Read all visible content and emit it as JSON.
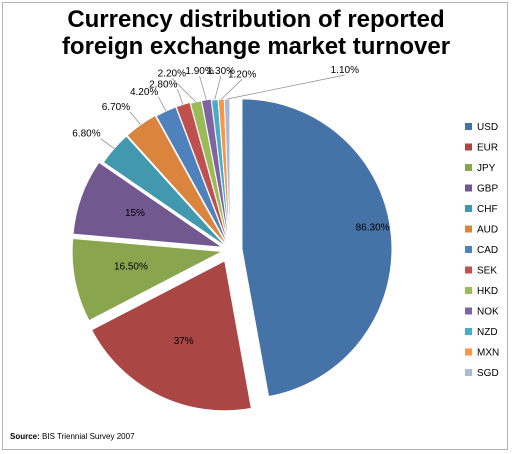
{
  "chart_data": {
    "type": "pie",
    "title_lines": [
      "Currency distribution of reported",
      "foreign exchange market turnover"
    ],
    "categories": [
      "USD",
      "EUR",
      "JPY",
      "GBP",
      "CHF",
      "AUD",
      "CAD",
      "SEK",
      "HKD",
      "NOK",
      "NZD",
      "MXN",
      "SGD"
    ],
    "values": [
      86.3,
      37,
      16.5,
      15,
      6.8,
      6.7,
      4.2,
      2.8,
      2.2,
      1.9,
      1.3,
      1.2,
      1.1
    ],
    "data_labels": [
      "86.30%",
      "37%",
      "16.50%",
      "15%",
      "6.80%",
      "6.70%",
      "4.20%",
      "2.80%",
      "2.20%",
      "1.90%",
      "1.30%",
      "1.20%",
      "1.10%"
    ],
    "colors": [
      "#4572A7",
      "#AA4643",
      "#89A54E",
      "#71588F",
      "#4198AF",
      "#DB843D",
      "#4F81BD",
      "#C0504D",
      "#9BBB59",
      "#8064A2",
      "#4BACC6",
      "#F79646",
      "#A9B9D6"
    ],
    "legend_position": "right",
    "exploded": true
  },
  "source": {
    "label": "Source:",
    "text": " BIS Triennial Survey 2007"
  }
}
